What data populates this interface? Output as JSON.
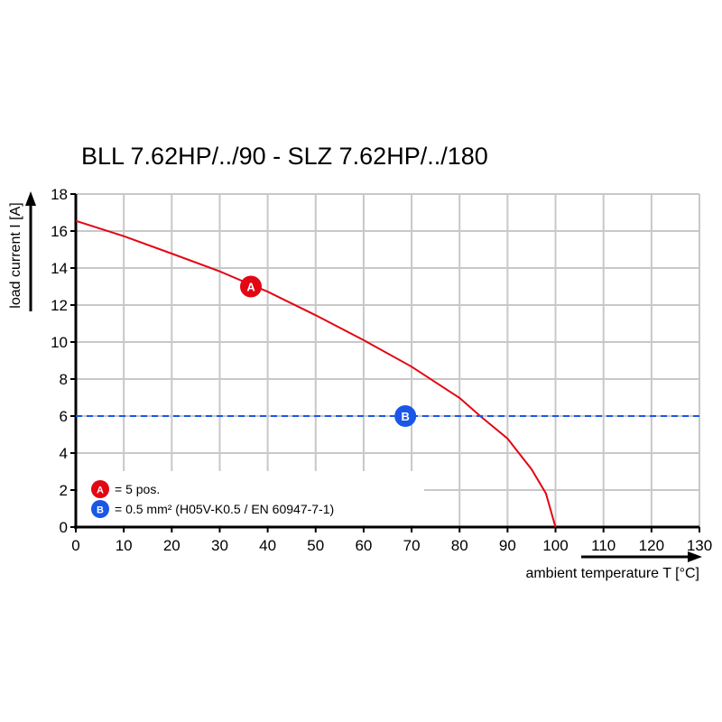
{
  "chart_data": {
    "type": "line",
    "title": "BLL 7.62HP/../90 - SLZ 7.62HP/../180",
    "xlabel": "ambient temperature T [°C]",
    "ylabel": "load current I [A]",
    "xlim": [
      0,
      130
    ],
    "ylim": [
      0,
      18
    ],
    "xticks": [
      0,
      10,
      20,
      30,
      40,
      50,
      60,
      70,
      80,
      90,
      100,
      110,
      120,
      130
    ],
    "yticks": [
      0,
      2,
      4,
      6,
      8,
      10,
      12,
      14,
      16,
      18
    ],
    "grid": true,
    "legend_placement": "bottom-left",
    "series": [
      {
        "marker_label": "A",
        "color": "#e30613",
        "style": "solid",
        "x": [
          0,
          10,
          20,
          30,
          40,
          50,
          60,
          70,
          80,
          84.3,
          90,
          95,
          98,
          100
        ],
        "y": [
          16.55,
          15.72,
          14.78,
          13.82,
          12.72,
          11.45,
          10.1,
          8.67,
          6.98,
          6.0,
          4.78,
          3.12,
          1.82,
          0
        ],
        "marker_at": [
          36.5,
          13
        ]
      },
      {
        "marker_label": "B",
        "color": "#1a56e8",
        "style": "dashed",
        "x": [
          0,
          130
        ],
        "y": [
          6,
          6
        ],
        "marker_at": [
          68.7,
          6
        ]
      }
    ],
    "legend": [
      {
        "marker": "A",
        "text": "= 5 pos.",
        "color": "#e30613"
      },
      {
        "marker": "B",
        "text": "= 0.5 mm² (H05V-K0.5 / EN 60947-7-1)",
        "color": "#1a56e8"
      }
    ]
  }
}
